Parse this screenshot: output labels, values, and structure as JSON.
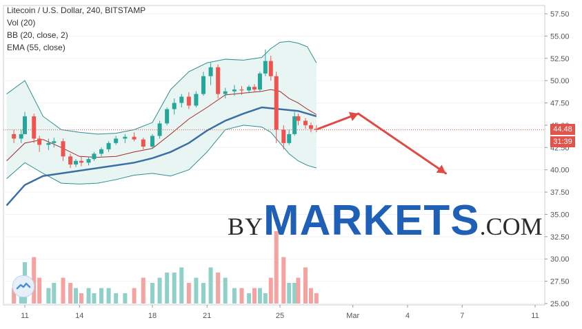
{
  "legend": {
    "title": "Litecoin / U.S. Dollar, 240, BITSTAMP",
    "vol": "Vol (20)",
    "bb": "BB (20, close, 2)",
    "ema": "EMA (55, close)"
  },
  "watermark": {
    "by": "BY",
    "markets": "MARKETS",
    "com": ".COM"
  },
  "price_tags": {
    "last_price": "44.48",
    "countdown": "31:39"
  },
  "colors": {
    "up": "#26a69a",
    "down": "#ef5350",
    "vol_up": "#8fd1c8",
    "vol_down": "#f4a3a0",
    "bb_mid": "#a52a2a",
    "bb_band": "#2d8f8f",
    "bb_fill": "#e8f5f3",
    "ema": "#3a6ea5",
    "arrow": "#e04a44",
    "last_line": "#e2534c"
  },
  "chart_data": {
    "type": "candlestick",
    "instrument": "Litecoin / U.S. Dollar",
    "interval": "240",
    "exchange": "BITSTAMP",
    "y_axis": {
      "ticks": [
        "57.50",
        "55.00",
        "52.50",
        "50.00",
        "47.50",
        "45.00",
        "42.50",
        "40.00",
        "37.50",
        "35.00",
        "32.50",
        "30.00",
        "27.50",
        "25.00"
      ],
      "range": [
        25.0,
        58.3
      ]
    },
    "x_axis": {
      "ticks": [
        "11",
        "14",
        "18",
        "21",
        "25",
        "Mar",
        "4",
        "7",
        "11"
      ]
    },
    "last_price": 44.48,
    "candles_x_day": [
      10.4,
      10.8,
      11.0,
      11.5,
      11.8,
      12.3,
      12.6,
      13.1,
      13.5,
      13.8,
      14.1,
      14.5,
      14.8,
      15.2,
      15.6,
      16.0,
      16.5,
      17.0,
      17.5,
      18.0,
      18.4,
      18.8,
      19.2,
      19.6,
      20.0,
      20.4,
      20.8,
      21.2,
      21.6,
      22.0,
      22.5,
      22.9,
      23.3,
      23.6,
      23.9,
      24.2,
      24.5,
      24.8,
      25.2,
      25.5,
      25.8,
      26.0,
      26.4,
      26.7,
      27.0
    ],
    "ohlc": [
      [
        44.0,
        44.5,
        43.0,
        43.5
      ],
      [
        43.5,
        44.5,
        43.0,
        44.0
      ],
      [
        44.0,
        46.5,
        44.0,
        46.0
      ],
      [
        46.0,
        46.3,
        43.0,
        43.5
      ],
      [
        43.5,
        43.8,
        42.0,
        42.8
      ],
      [
        42.8,
        43.5,
        42.2,
        43.0
      ],
      [
        43.0,
        43.6,
        42.5,
        43.2
      ],
      [
        43.2,
        43.5,
        41.0,
        41.5
      ],
      [
        41.5,
        41.8,
        40.2,
        40.6
      ],
      [
        40.6,
        41.2,
        40.3,
        41.0
      ],
      [
        41.0,
        41.5,
        40.4,
        40.8
      ],
      [
        40.8,
        41.5,
        40.5,
        41.2
      ],
      [
        41.2,
        42.0,
        41.0,
        41.8
      ],
      [
        41.8,
        42.5,
        41.5,
        42.3
      ],
      [
        42.3,
        43.2,
        42.0,
        43.0
      ],
      [
        43.0,
        43.8,
        42.8,
        43.5
      ],
      [
        43.5,
        44.0,
        43.0,
        43.7
      ],
      [
        43.7,
        44.2,
        43.2,
        43.4
      ],
      [
        43.4,
        43.6,
        42.3,
        42.6
      ],
      [
        42.6,
        44.0,
        42.4,
        43.8
      ],
      [
        43.8,
        45.5,
        43.5,
        45.2
      ],
      [
        45.2,
        47.0,
        45.0,
        46.8
      ],
      [
        46.8,
        48.0,
        46.2,
        47.5
      ],
      [
        47.5,
        48.5,
        47.0,
        48.2
      ],
      [
        48.2,
        48.7,
        46.8,
        47.2
      ],
      [
        47.2,
        48.8,
        47.0,
        48.5
      ],
      [
        48.5,
        51.0,
        48.3,
        50.5
      ],
      [
        50.5,
        52.0,
        49.5,
        51.5
      ],
      [
        51.5,
        51.8,
        48.0,
        48.5
      ],
      [
        48.5,
        49.2,
        48.0,
        48.8
      ],
      [
        48.8,
        49.5,
        48.3,
        49.0
      ],
      [
        49.0,
        49.4,
        48.4,
        48.9
      ],
      [
        48.9,
        49.5,
        48.6,
        49.3
      ],
      [
        49.3,
        49.6,
        48.7,
        49.0
      ],
      [
        49.0,
        51.0,
        48.8,
        50.8
      ],
      [
        50.8,
        53.5,
        50.5,
        52.2
      ],
      [
        52.2,
        52.8,
        50.0,
        50.5
      ],
      [
        50.5,
        51.0,
        43.0,
        44.5
      ],
      [
        44.5,
        45.0,
        42.3,
        43.0
      ],
      [
        43.0,
        44.5,
        42.8,
        44.0
      ],
      [
        44.0,
        46.5,
        43.8,
        46.0
      ],
      [
        46.0,
        46.3,
        45.0,
        45.5
      ],
      [
        45.5,
        45.8,
        44.6,
        45.0
      ],
      [
        45.0,
        45.3,
        44.2,
        44.6
      ],
      [
        44.6,
        45.0,
        44.2,
        44.48
      ]
    ],
    "ema_55": {
      "x_day": [
        10.0,
        11.0,
        12.0,
        13.0,
        14.0,
        15.0,
        16.0,
        17.0,
        18.0,
        19.0,
        20.0,
        21.0,
        22.0,
        23.0,
        24.0,
        25.0,
        26.0,
        27.0
      ],
      "y": [
        36.0,
        38.3,
        39.3,
        39.6,
        39.9,
        40.2,
        40.5,
        40.8,
        41.3,
        42.0,
        43.0,
        44.4,
        45.5,
        46.3,
        47.0,
        46.8,
        46.6,
        46.0
      ]
    },
    "bb_upper": {
      "x_day": [
        10.0,
        11.0,
        12.0,
        13.0,
        14.0,
        15.0,
        16.0,
        17.0,
        18.0,
        19.0,
        20.0,
        21.0,
        22.0,
        23.0,
        24.0,
        24.5,
        25.0,
        25.5,
        26.0,
        26.5,
        27.0
      ],
      "y": [
        48.5,
        50.0,
        46.0,
        44.5,
        44.2,
        44.0,
        44.1,
        44.5,
        45.3,
        49.0,
        51.0,
        52.0,
        52.4,
        52.3,
        52.6,
        53.6,
        54.3,
        54.4,
        54.2,
        53.8,
        52.0
      ]
    },
    "bb_lower": {
      "x_day": [
        10.0,
        11.0,
        12.0,
        13.0,
        14.0,
        15.0,
        16.0,
        17.0,
        18.0,
        19.0,
        20.0,
        21.0,
        22.0,
        23.0,
        24.0,
        24.5,
        25.0,
        25.5,
        26.0,
        26.5,
        27.0
      ],
      "y": [
        39.0,
        40.8,
        39.6,
        38.5,
        38.4,
        38.5,
        38.9,
        39.4,
        39.6,
        39.3,
        40.0,
        42.0,
        44.5,
        45.0,
        44.8,
        44.2,
        43.0,
        41.8,
        41.0,
        40.5,
        40.2
      ]
    },
    "bb_mid": {
      "x_day": [
        10.0,
        11.0,
        12.0,
        13.0,
        14.0,
        15.0,
        16.0,
        17.0,
        18.0,
        19.0,
        20.0,
        21.0,
        22.0,
        23.0,
        24.0,
        24.5,
        25.0,
        25.5,
        26.0,
        26.5,
        27.0
      ],
      "y": [
        41.0,
        43.0,
        43.4,
        42.5,
        41.5,
        41.4,
        41.5,
        42.0,
        42.4,
        44.0,
        45.7,
        47.0,
        48.4,
        48.6,
        48.8,
        49.0,
        48.8,
        48.0,
        47.5,
        46.8,
        46.2
      ]
    },
    "volume_x_day": [
      10.4,
      10.8,
      11.0,
      11.5,
      11.8,
      12.3,
      12.6,
      13.1,
      13.5,
      13.8,
      14.1,
      14.5,
      14.8,
      15.2,
      15.6,
      16.0,
      16.5,
      17.0,
      17.5,
      18.0,
      18.4,
      18.8,
      19.2,
      19.6,
      20.0,
      20.4,
      20.8,
      21.2,
      21.6,
      22.0,
      22.5,
      22.9,
      23.3,
      23.6,
      23.9,
      24.2,
      24.5,
      24.8,
      25.2,
      25.5,
      25.8,
      26.0,
      26.4,
      26.7,
      27.0
    ],
    "volume": [
      3,
      2,
      8,
      9,
      5,
      3,
      4,
      5,
      4,
      3,
      2,
      3,
      2,
      3,
      3,
      2,
      2,
      3,
      5,
      4,
      5,
      6,
      6,
      7,
      4,
      5,
      4,
      7,
      6,
      5,
      3,
      3,
      2,
      3,
      3,
      2,
      5,
      14,
      9,
      4,
      4,
      5,
      7,
      3,
      2
    ],
    "volume_up": [
      false,
      true,
      true,
      false,
      false,
      true,
      true,
      false,
      false,
      true,
      false,
      true,
      true,
      true,
      true,
      true,
      true,
      false,
      false,
      true,
      true,
      true,
      true,
      true,
      false,
      true,
      true,
      true,
      false,
      true,
      true,
      false,
      true,
      false,
      true,
      true,
      false,
      false,
      false,
      true,
      true,
      false,
      false,
      false,
      false
    ],
    "annotation_arrows": [
      {
        "from": [
          27.1,
          44.6
        ],
        "to": [
          29.3,
          46.3
        ]
      },
      {
        "from": [
          29.3,
          46.3
        ],
        "to": [
          34.1,
          39.6
        ]
      }
    ]
  }
}
